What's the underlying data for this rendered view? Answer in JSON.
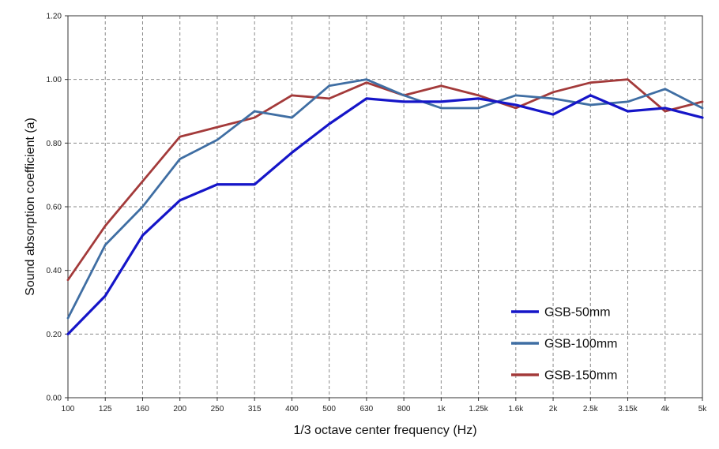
{
  "chart_data": {
    "type": "line",
    "title": "",
    "xlabel": "1/3 octave center frequency (Hz)",
    "ylabel": "Sound absorption coefficient (a)",
    "categories": [
      "100",
      "125",
      "160",
      "200",
      "250",
      "315",
      "400",
      "500",
      "630",
      "800",
      "1k",
      "1.25k",
      "1.6k",
      "2k",
      "2.5k",
      "3.15k",
      "4k",
      "5k"
    ],
    "ylim": [
      0,
      1.2
    ],
    "yticks": [
      "0.00",
      "0.20",
      "0.40",
      "0.60",
      "0.80",
      "1.00",
      "1.20"
    ],
    "grid": true,
    "legend_position": "bottom-right",
    "series": [
      {
        "name": "GSB-50mm",
        "color": "#1515c8",
        "values": [
          0.2,
          0.32,
          0.51,
          0.62,
          0.67,
          0.67,
          0.77,
          0.86,
          0.94,
          0.93,
          0.93,
          0.94,
          0.92,
          0.89,
          0.95,
          0.9,
          0.91,
          0.88
        ]
      },
      {
        "name": "GSB-100mm",
        "color": "#3f6ea3",
        "values": [
          0.25,
          0.48,
          0.6,
          0.75,
          0.81,
          0.9,
          0.88,
          0.98,
          1.0,
          0.95,
          0.91,
          0.91,
          0.95,
          0.94,
          0.92,
          0.93,
          0.97,
          0.91
        ]
      },
      {
        "name": "GSB-150mm",
        "color": "#a33a3a",
        "values": [
          0.37,
          0.54,
          0.68,
          0.82,
          0.85,
          0.88,
          0.95,
          0.94,
          0.99,
          0.95,
          0.98,
          0.95,
          0.91,
          0.96,
          0.99,
          1.0,
          0.9,
          0.93
        ]
      }
    ]
  }
}
